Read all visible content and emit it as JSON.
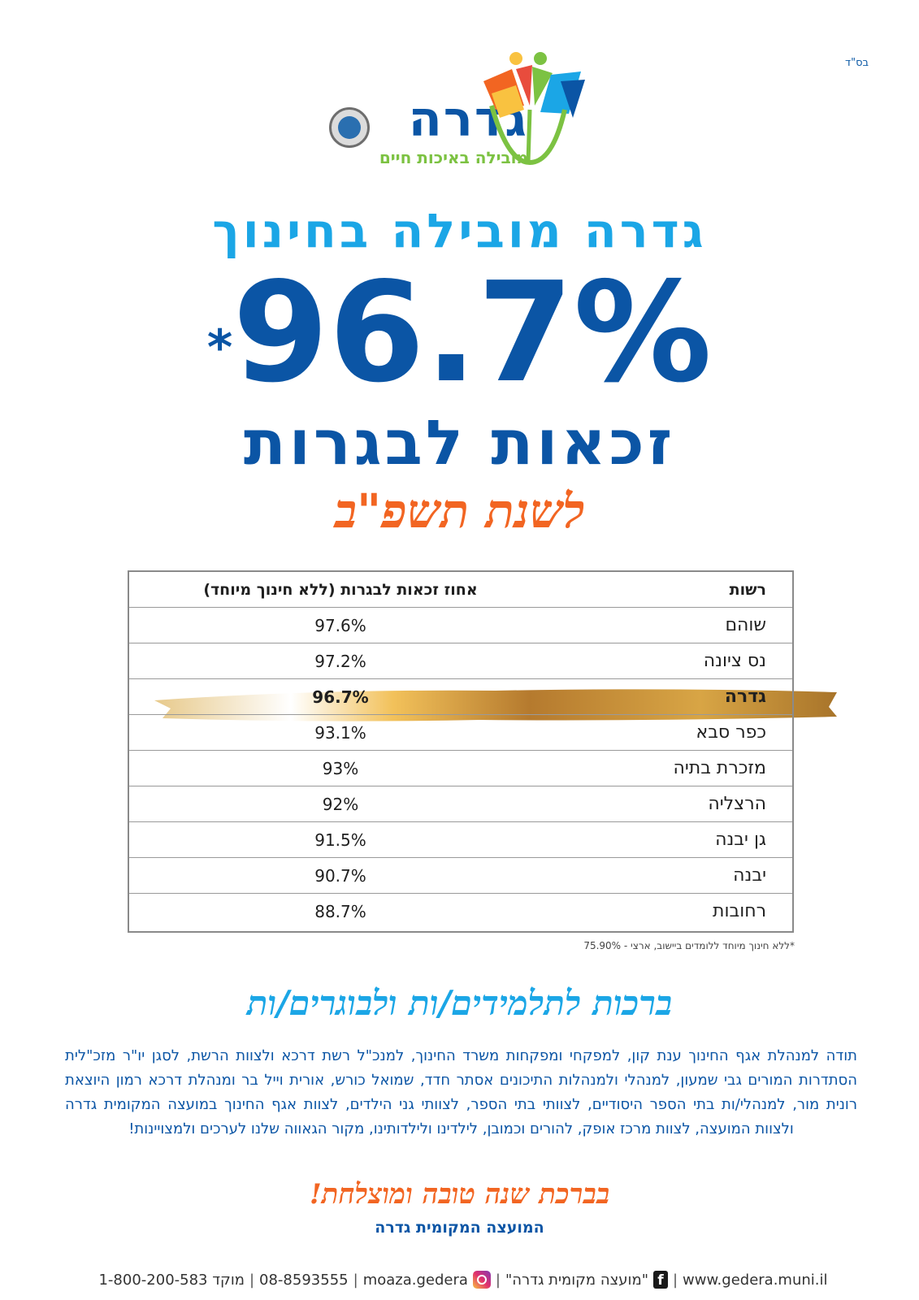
{
  "top_mark": "בס\"ד",
  "logo": {
    "city": "גדרה",
    "slogan": "מובילה באיכות חיים"
  },
  "headline": {
    "title": "גדרה מובילה בחינוך",
    "big_number": "96.7%",
    "big_number_mark": "*",
    "subtitle": "זכאות לבגרות",
    "year": "לשנת תשפ\"ב"
  },
  "table": {
    "headers": {
      "name": "רשות",
      "value": "אחוז זכאות לבגרות (ללא חינוך מיוחד)"
    },
    "rows": [
      {
        "name": "שוהם",
        "value": "97.6%"
      },
      {
        "name": "נס ציונה",
        "value": "97.2%"
      },
      {
        "name": "גדרה",
        "value": "96.7%",
        "highlight": true
      },
      {
        "name": "כפר סבא",
        "value": "93.1%"
      },
      {
        "name": "מזכרת בתיה",
        "value": "93%"
      },
      {
        "name": "הרצליה",
        "value": "92%"
      },
      {
        "name": "גן יבנה",
        "value": "91.5%"
      },
      {
        "name": "יבנה",
        "value": "90.7%"
      },
      {
        "name": "רחובות",
        "value": "88.7%"
      }
    ],
    "highlight_color": "#c8973a"
  },
  "footnote": "*ללא חינוך מיוחד ללומדים ביישוב, ארצי - 75.90%",
  "greeting": "ברכות לתלמידים/ות ולבוגרים/ות",
  "thanks": "תודה למנהלת אגף החינוך ענת קון, למפקחי ומפקחות משרד החינוך, למנכ\"ל רשת דרכא ולצוות הרשת, לסגן יו\"ר מזכ\"לית הסתדרות המורים גבי שמעון, למנהלי ולמנהלות התיכונים אסתר חדד, שמואל כורש, אורית וייל בר ומנהלת דרכא רמון היוצאת רונית מור, למנהלי/ות בתי הספר היסודיים, לצוותי בתי הספר, לצוותי גני הילדים, לצוות אגף החינוך במועצה המקומית גדרה ולצוות המועצה, לצוות מרכז אופק, להורים וכמובן, לילדינו ולילדותינו, מקור הגאווה שלנו לערכים ולמצויינות!",
  "blessing": "בברכת שנה טובה ומוצלחת!",
  "signer": "המועצה המקומית גדרה",
  "footer": {
    "website": "www.gedera.muni.il",
    "facebook": "\"מועצה מקומית גדרה\"",
    "instagram": "moaza.gedera",
    "phone": "08-8593555",
    "hotline": "מוקד 1-800-200-583",
    "icons": [
      "facebook-icon",
      "instagram-icon"
    ]
  },
  "colors": {
    "primary_blue": "#0b55a5",
    "light_blue": "#1ba6e6",
    "orange": "#f26522",
    "green": "#7cc242"
  }
}
